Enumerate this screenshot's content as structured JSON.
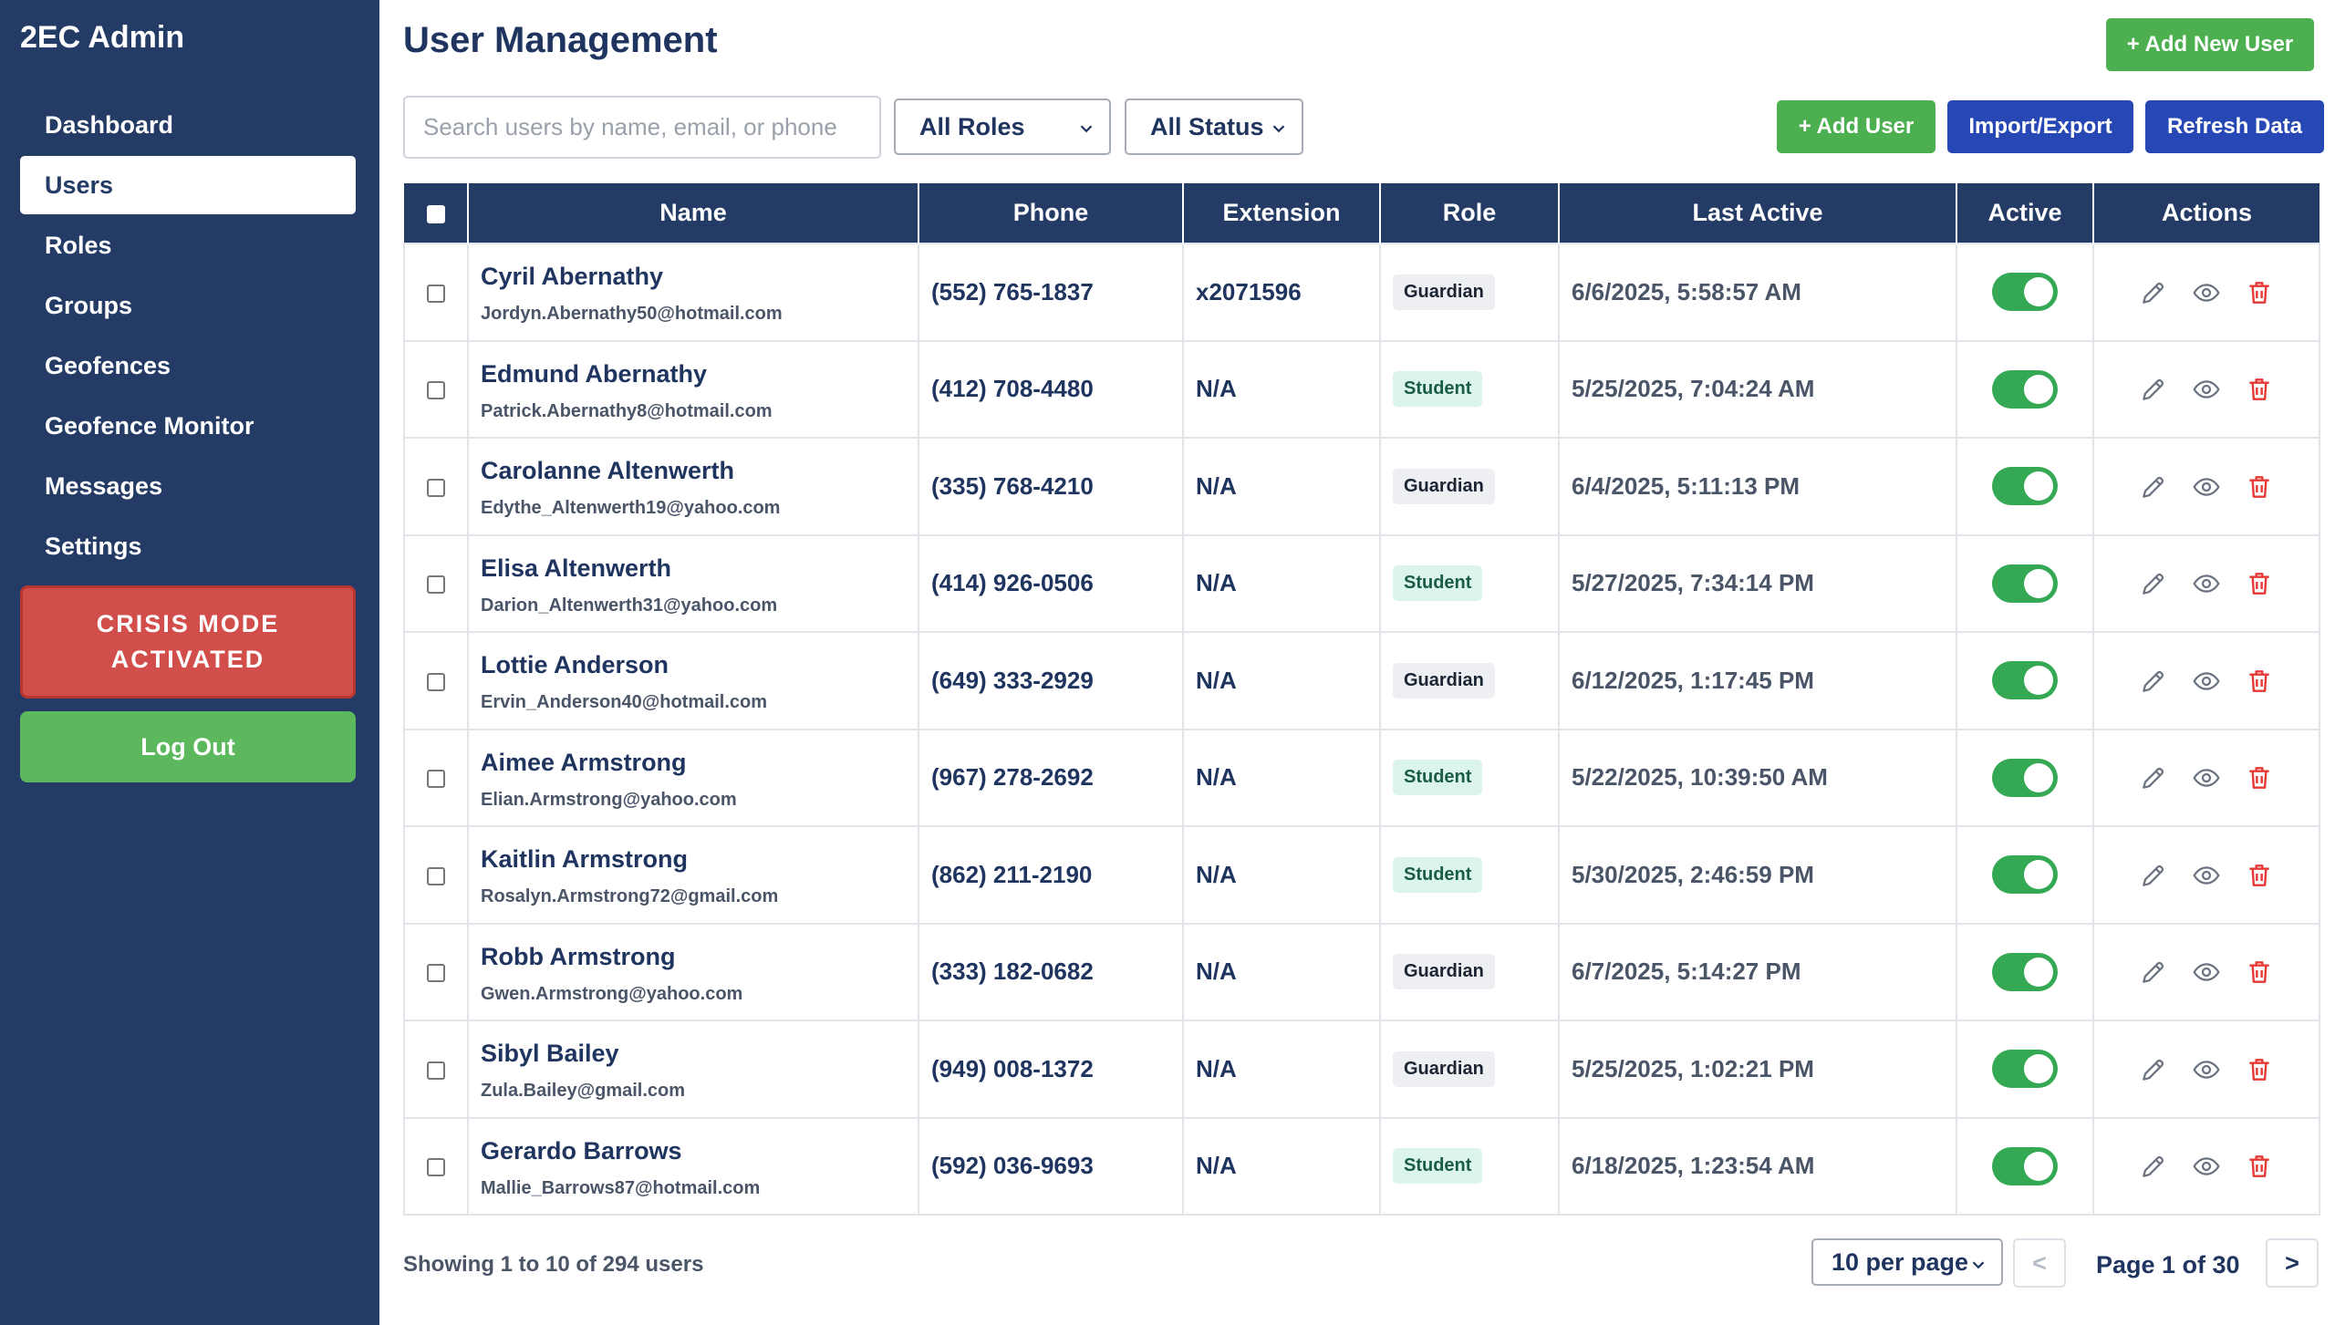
{
  "sidebar": {
    "brand": "2EC Admin",
    "items": [
      {
        "label": "Dashboard",
        "active": false
      },
      {
        "label": "Users",
        "active": true
      },
      {
        "label": "Roles",
        "active": false
      },
      {
        "label": "Groups",
        "active": false
      },
      {
        "label": "Geofences",
        "active": false
      },
      {
        "label": "Geofence Monitor",
        "active": false
      },
      {
        "label": "Messages",
        "active": false
      },
      {
        "label": "Settings",
        "active": false
      }
    ],
    "crisis_line1": "CRISIS MODE",
    "crisis_line2": "ACTIVATED",
    "logout_label": "Log Out"
  },
  "header": {
    "title": "User Management",
    "add_new_user_label": "+ Add New User"
  },
  "filters": {
    "search_placeholder": "Search users by name, email, or phone",
    "search_value": "",
    "role_selected": "All Roles",
    "status_selected": "All Status"
  },
  "toolbar": {
    "add_user_label": "+ Add User",
    "import_export_label": "Import/Export",
    "refresh_label": "Refresh Data"
  },
  "table": {
    "columns": [
      "",
      "Name",
      "Phone",
      "Extension",
      "Role",
      "Last Active",
      "Active",
      "Actions"
    ],
    "rows": [
      {
        "name": "Cyril Abernathy",
        "email": "Jordyn.Abernathy50@hotmail.com",
        "phone": "(552) 765-1837",
        "extension": "x2071596",
        "role": "Guardian",
        "last_active": "6/6/2025, 5:58:57 AM",
        "active": true
      },
      {
        "name": "Edmund Abernathy",
        "email": "Patrick.Abernathy8@hotmail.com",
        "phone": "(412) 708-4480",
        "extension": "N/A",
        "role": "Student",
        "last_active": "5/25/2025, 7:04:24 AM",
        "active": true
      },
      {
        "name": "Carolanne Altenwerth",
        "email": "Edythe_Altenwerth19@yahoo.com",
        "phone": "(335) 768-4210",
        "extension": "N/A",
        "role": "Guardian",
        "last_active": "6/4/2025, 5:11:13 PM",
        "active": true
      },
      {
        "name": "Elisa Altenwerth",
        "email": "Darion_Altenwerth31@yahoo.com",
        "phone": "(414) 926-0506",
        "extension": "N/A",
        "role": "Student",
        "last_active": "5/27/2025, 7:34:14 PM",
        "active": true
      },
      {
        "name": "Lottie Anderson",
        "email": "Ervin_Anderson40@hotmail.com",
        "phone": "(649) 333-2929",
        "extension": "N/A",
        "role": "Guardian",
        "last_active": "6/12/2025, 1:17:45 PM",
        "active": true
      },
      {
        "name": "Aimee Armstrong",
        "email": "Elian.Armstrong@yahoo.com",
        "phone": "(967) 278-2692",
        "extension": "N/A",
        "role": "Student",
        "last_active": "5/22/2025, 10:39:50 AM",
        "active": true
      },
      {
        "name": "Kaitlin Armstrong",
        "email": "Rosalyn.Armstrong72@gmail.com",
        "phone": "(862) 211-2190",
        "extension": "N/A",
        "role": "Student",
        "last_active": "5/30/2025, 2:46:59 PM",
        "active": true
      },
      {
        "name": "Robb Armstrong",
        "email": "Gwen.Armstrong@yahoo.com",
        "phone": "(333) 182-0682",
        "extension": "N/A",
        "role": "Guardian",
        "last_active": "6/7/2025, 5:14:27 PM",
        "active": true
      },
      {
        "name": "Sibyl Bailey",
        "email": "Zula.Bailey@gmail.com",
        "phone": "(949) 008-1372",
        "extension": "N/A",
        "role": "Guardian",
        "last_active": "5/25/2025, 1:02:21 PM",
        "active": true
      },
      {
        "name": "Gerardo Barrows",
        "email": "Mallie_Barrows87@hotmail.com",
        "phone": "(592) 036-9693",
        "extension": "N/A",
        "role": "Student",
        "last_active": "6/18/2025, 1:23:54 AM",
        "active": true
      }
    ]
  },
  "footer": {
    "showing_text": "Showing 1 to 10 of 294 users",
    "per_page_selected": "10 per page",
    "prev_label": "<",
    "next_label": ">",
    "page_info": "Page 1 of 30"
  },
  "icons": {
    "edit": "pencil-icon",
    "view": "eye-icon",
    "delete": "trash-icon",
    "select_chevron": "chevron-down-icon"
  },
  "colors": {
    "sidebar_bg": "#243b65",
    "crisis_red": "#d24e4b",
    "green": "#4caf50",
    "blue": "#2748b4",
    "toggle_on": "#34a853",
    "delete_red": "#e53935"
  }
}
